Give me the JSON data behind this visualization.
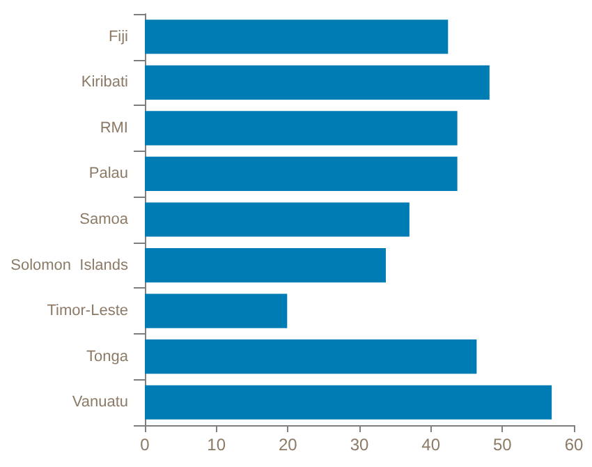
{
  "chart_data": {
    "type": "bar",
    "orientation": "horizontal",
    "categories": [
      "Fiji",
      "Kiribati",
      "RMI",
      "Palau",
      "Samoa",
      "Solomon  Islands",
      "Timor-Leste",
      "Tonga",
      "Vanuatu"
    ],
    "values": [
      42.4,
      48.2,
      43.7,
      43.7,
      37.0,
      33.7,
      19.9,
      46.4,
      56.9
    ],
    "color": "#007cb5",
    "xlim": [
      0,
      60
    ],
    "xticks": [
      0,
      10,
      20,
      30,
      40,
      50,
      60
    ],
    "grid": false
  }
}
